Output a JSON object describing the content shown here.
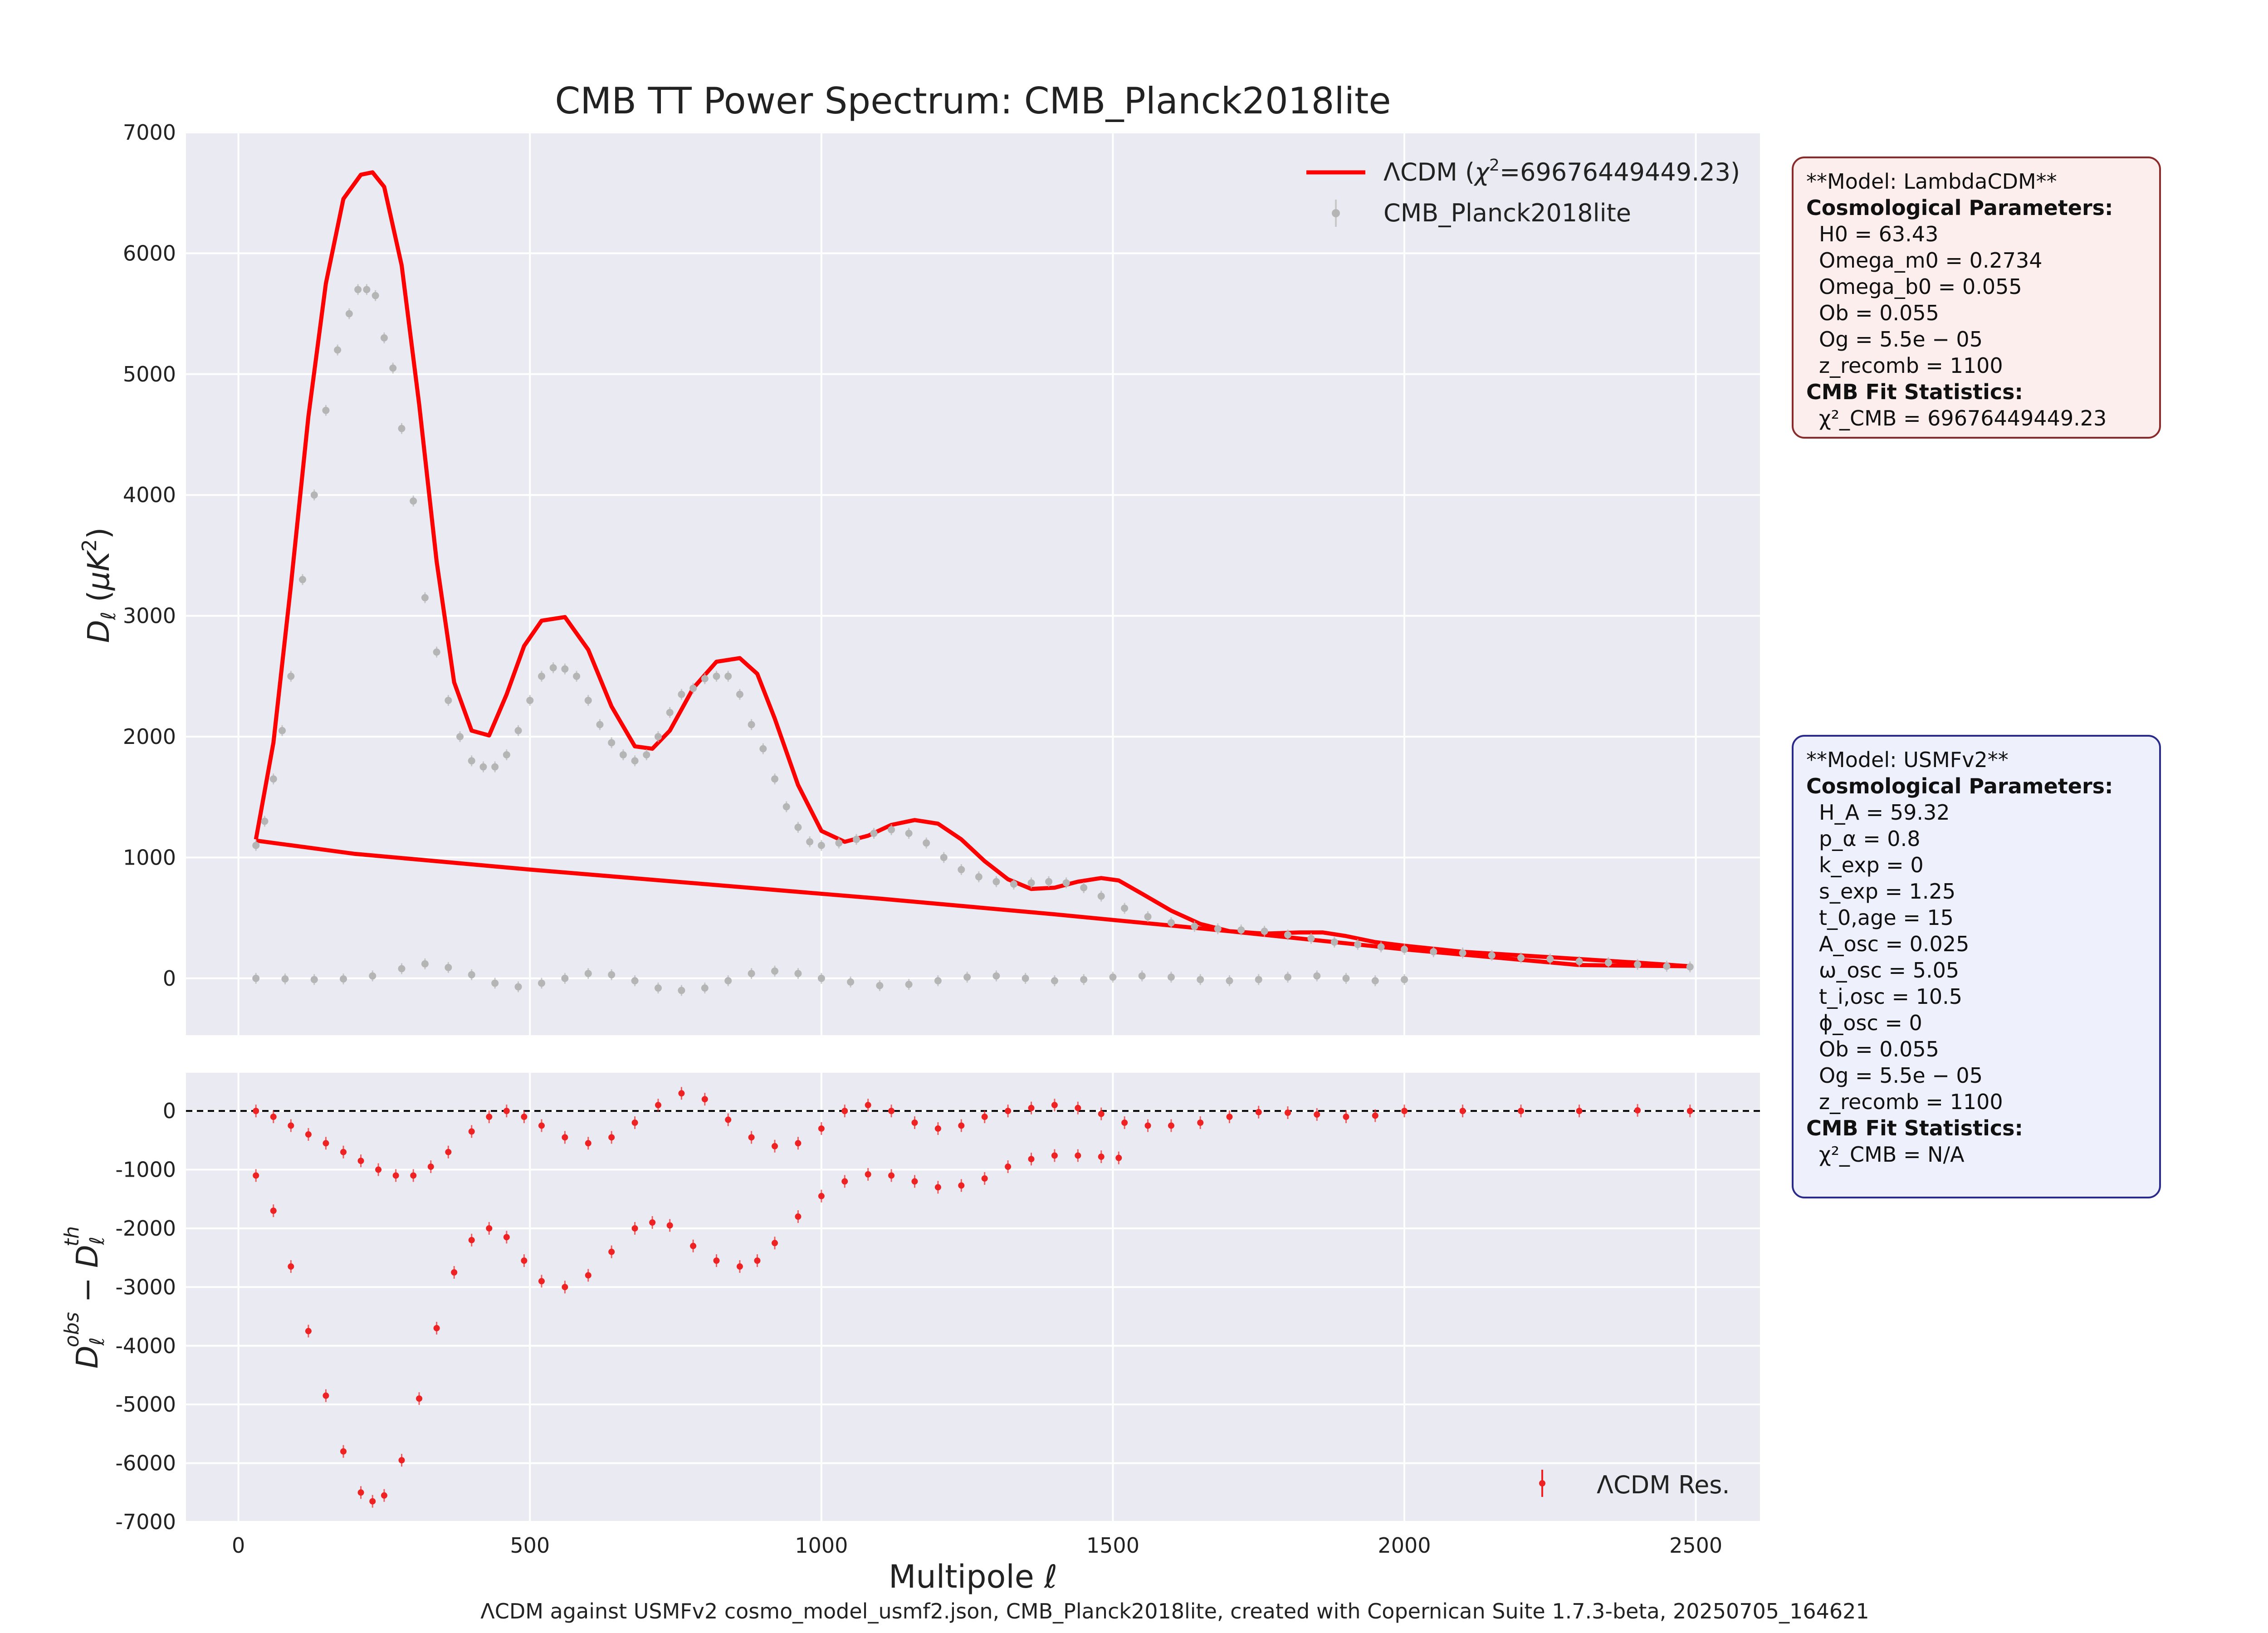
{
  "figure": {
    "title": "CMB TT Power Spectrum: CMB_Planck2018lite",
    "caption": "ΛCDM against USMFv2 cosmo_model_usmf2.json, CMB_Planck2018lite, created with Copernican Suite 1.7.3-beta, 20250705_164621"
  },
  "colors": {
    "model": "#ff0000",
    "data": "#b5b5b5",
    "residual": "#ee2222",
    "panel_bg": "#eaeaf2",
    "grid": "#ffffff"
  },
  "chart_data": [
    {
      "type": "line",
      "panel": "spectrum",
      "xlabel": "",
      "ylabel": "D_ℓ (μK²)",
      "xlim": [
        -90,
        2610
      ],
      "ylim": [
        -470,
        7000
      ],
      "xticks": [
        0,
        500,
        1000,
        1500,
        2000,
        2500
      ],
      "yticks": [
        0,
        1000,
        2000,
        3000,
        4000,
        5000,
        6000,
        7000
      ],
      "grid": true,
      "legend": {
        "placement": "top-right",
        "entries": [
          "ΛCDM (χ²=69676449449.23)",
          "CMB_Planck2018lite"
        ]
      },
      "series": [
        {
          "name": "ΛCDM (χ²=69676449449.23)",
          "kind": "line",
          "note": "model curve drawn in data order; it jumps from ℓ≈2500 back to ℓ≈30 and the straight return segment is visible",
          "x": [
            30,
            60,
            90,
            120,
            150,
            180,
            210,
            230,
            250,
            280,
            310,
            340,
            370,
            400,
            430,
            460,
            490,
            520,
            560,
            600,
            640,
            680,
            710,
            740,
            780,
            820,
            860,
            890,
            920,
            960,
            1000,
            1040,
            1080,
            1120,
            1160,
            1200,
            1240,
            1280,
            1320,
            1360,
            1400,
            1440,
            1480,
            1510,
            1550,
            1600,
            1650,
            1700,
            1760,
            1820,
            1860,
            1900,
            1950,
            2000,
            2100,
            2200,
            2300,
            2400,
            2490,
            2300,
            2000,
            1700,
            1400,
            1100,
            800,
            500,
            200,
            30
          ],
          "y": [
            1150,
            1950,
            3250,
            4650,
            5750,
            6450,
            6650,
            6670,
            6550,
            5900,
            4750,
            3450,
            2450,
            2050,
            2010,
            2350,
            2750,
            2960,
            2990,
            2720,
            2250,
            1920,
            1900,
            2050,
            2400,
            2620,
            2650,
            2520,
            2150,
            1600,
            1220,
            1130,
            1180,
            1270,
            1310,
            1280,
            1150,
            970,
            820,
            740,
            750,
            800,
            830,
            810,
            700,
            560,
            450,
            390,
            370,
            380,
            380,
            350,
            300,
            270,
            220,
            190,
            160,
            130,
            100,
            110,
            240,
            390,
            530,
            660,
            780,
            900,
            1030,
            1140
          ]
        },
        {
          "name": "CMB_Planck2018lite",
          "kind": "points",
          "x": [
            30,
            45,
            60,
            75,
            90,
            110,
            130,
            150,
            170,
            190,
            205,
            220,
            235,
            250,
            265,
            280,
            300,
            320,
            340,
            360,
            380,
            400,
            420,
            440,
            460,
            480,
            500,
            520,
            540,
            560,
            580,
            600,
            620,
            640,
            660,
            680,
            700,
            720,
            740,
            760,
            780,
            800,
            820,
            840,
            860,
            880,
            900,
            920,
            940,
            960,
            980,
            1000,
            1030,
            1060,
            1090,
            1120,
            1150,
            1180,
            1210,
            1240,
            1270,
            1300,
            1330,
            1360,
            1390,
            1420,
            1450,
            1480,
            1520,
            1560,
            1600,
            1640,
            1680,
            1720,
            1760,
            1800,
            1840,
            1880,
            1920,
            1960,
            2000,
            2050,
            2100,
            2150,
            2200,
            2250,
            2300,
            2350,
            2400,
            2450,
            2490
          ],
          "y": [
            1100,
            1300,
            1650,
            2050,
            2500,
            3300,
            4000,
            4700,
            5200,
            5500,
            5700,
            5700,
            5650,
            5300,
            5050,
            4550,
            3950,
            3150,
            2700,
            2300,
            2000,
            1800,
            1750,
            1750,
            1850,
            2050,
            2300,
            2500,
            2570,
            2560,
            2500,
            2300,
            2100,
            1950,
            1850,
            1800,
            1850,
            2000,
            2200,
            2350,
            2400,
            2480,
            2500,
            2500,
            2350,
            2100,
            1900,
            1650,
            1420,
            1250,
            1130,
            1100,
            1120,
            1150,
            1200,
            1230,
            1200,
            1120,
            1000,
            900,
            840,
            800,
            780,
            790,
            800,
            790,
            750,
            680,
            580,
            510,
            460,
            430,
            410,
            400,
            390,
            360,
            330,
            300,
            280,
            260,
            240,
            220,
            210,
            190,
            170,
            160,
            140,
            130,
            115,
            100,
            95
          ]
        },
        {
          "name": "",
          "kind": "points",
          "note": "second row of grey points oscillating near zero (ℓ 30–2000)",
          "x": [
            30,
            80,
            130,
            180,
            230,
            280,
            320,
            360,
            400,
            440,
            480,
            520,
            560,
            600,
            640,
            680,
            720,
            760,
            800,
            840,
            880,
            920,
            960,
            1000,
            1050,
            1100,
            1150,
            1200,
            1250,
            1300,
            1350,
            1400,
            1450,
            1500,
            1550,
            1600,
            1650,
            1700,
            1750,
            1800,
            1850,
            1900,
            1950,
            2000
          ],
          "y": [
            0,
            -5,
            -10,
            -5,
            20,
            80,
            120,
            90,
            30,
            -40,
            -70,
            -40,
            0,
            40,
            30,
            -20,
            -80,
            -100,
            -80,
            -20,
            40,
            60,
            40,
            0,
            -30,
            -60,
            -50,
            -20,
            10,
            20,
            0,
            -20,
            -10,
            10,
            20,
            10,
            -10,
            -20,
            -10,
            10,
            20,
            0,
            -20,
            -10
          ]
        }
      ]
    },
    {
      "type": "scatter",
      "panel": "residuals",
      "xlabel": "Multipole ℓ",
      "ylabel": "D_ℓ^obs − D_ℓ^th",
      "xlim": [
        -90,
        2610
      ],
      "ylim": [
        -7000,
        650
      ],
      "xticks": [
        0,
        500,
        1000,
        1500,
        2000,
        2500
      ],
      "yticks": [
        -7000,
        -6000,
        -5000,
        -4000,
        -3000,
        -2000,
        -1000,
        0
      ],
      "grid": true,
      "reference_line": 0,
      "legend": {
        "placement": "bottom-right",
        "entries": [
          "ΛCDM Res."
        ]
      },
      "series": [
        {
          "name": "ΛCDM Res.",
          "kind": "points",
          "note": "upper residual branch",
          "x": [
            30,
            60,
            90,
            120,
            150,
            180,
            210,
            240,
            270,
            300,
            330,
            360,
            400,
            430,
            460,
            490,
            520,
            560,
            600,
            640,
            680,
            720,
            760,
            800,
            840,
            880,
            920,
            960,
            1000,
            1040,
            1080,
            1120,
            1160,
            1200,
            1240,
            1280,
            1320,
            1360,
            1400,
            1440,
            1480,
            1520,
            1560,
            1600,
            1650,
            1700,
            1750,
            1800,
            1850,
            1900,
            1950,
            2000,
            2100,
            2200,
            2300,
            2400,
            2490
          ],
          "y": [
            0,
            -100,
            -250,
            -400,
            -550,
            -700,
            -850,
            -1000,
            -1100,
            -1100,
            -950,
            -700,
            -350,
            -100,
            0,
            -100,
            -250,
            -450,
            -550,
            -450,
            -200,
            100,
            300,
            200,
            -150,
            -450,
            -600,
            -550,
            -300,
            0,
            100,
            0,
            -200,
            -300,
            -250,
            -100,
            0,
            50,
            100,
            50,
            -50,
            -200,
            -250,
            -250,
            -200,
            -100,
            -20,
            -30,
            -60,
            -100,
            -80,
            0,
            0,
            0,
            0,
            10,
            0
          ]
        },
        {
          "name": "",
          "kind": "points",
          "note": "lower residual branch",
          "x": [
            30,
            60,
            90,
            120,
            150,
            180,
            210,
            230,
            250,
            280,
            310,
            340,
            370,
            400,
            430,
            460,
            490,
            520,
            560,
            600,
            640,
            680,
            710,
            740,
            780,
            820,
            860,
            890,
            920,
            960,
            1000,
            1040,
            1080,
            1120,
            1160,
            1200,
            1240,
            1280,
            1320,
            1360,
            1400,
            1440,
            1480,
            1510
          ],
          "y": [
            -1100,
            -1700,
            -2650,
            -3750,
            -4850,
            -5800,
            -6500,
            -6650,
            -6550,
            -5950,
            -4900,
            -3700,
            -2750,
            -2200,
            -2000,
            -2150,
            -2550,
            -2900,
            -3000,
            -2800,
            -2400,
            -2000,
            -1900,
            -1950,
            -2300,
            -2550,
            -2650,
            -2550,
            -2250,
            -1800,
            -1450,
            -1200,
            -1080,
            -1100,
            -1200,
            -1300,
            -1270,
            -1150,
            -950,
            -820,
            -760,
            -760,
            -780,
            -800
          ]
        }
      ]
    }
  ],
  "info_boxes": {
    "lcdm": {
      "header": "**Model: LambdaCDM**",
      "params_title": "Cosmological Parameters:",
      "params": [
        "H0 = 63.43",
        "Omega_m0 = 0.2734",
        "Omega_b0 = 0.055",
        "Ob = 0.055",
        "Og = 5.5e − 05",
        "z_recomb = 1100"
      ],
      "fit_title": "CMB Fit Statistics:",
      "fit": [
        "χ²_CMB = 69676449449.23"
      ]
    },
    "usmf": {
      "header": "**Model: USMFv2**",
      "params_title": "Cosmological Parameters:",
      "params": [
        "H_A = 59.32",
        "p_α = 0.8",
        "k_exp = 0",
        "s_exp = 1.25",
        "t_0,age = 15",
        "A_osc = 0.025",
        "ω_osc = 5.05",
        "t_i,osc = 10.5",
        "ϕ_osc = 0",
        "Ob = 0.055",
        "Og = 5.5e − 05",
        "z_recomb = 1100"
      ],
      "fit_title": "CMB Fit Statistics:",
      "fit": [
        "χ²_CMB = N/A"
      ]
    }
  }
}
